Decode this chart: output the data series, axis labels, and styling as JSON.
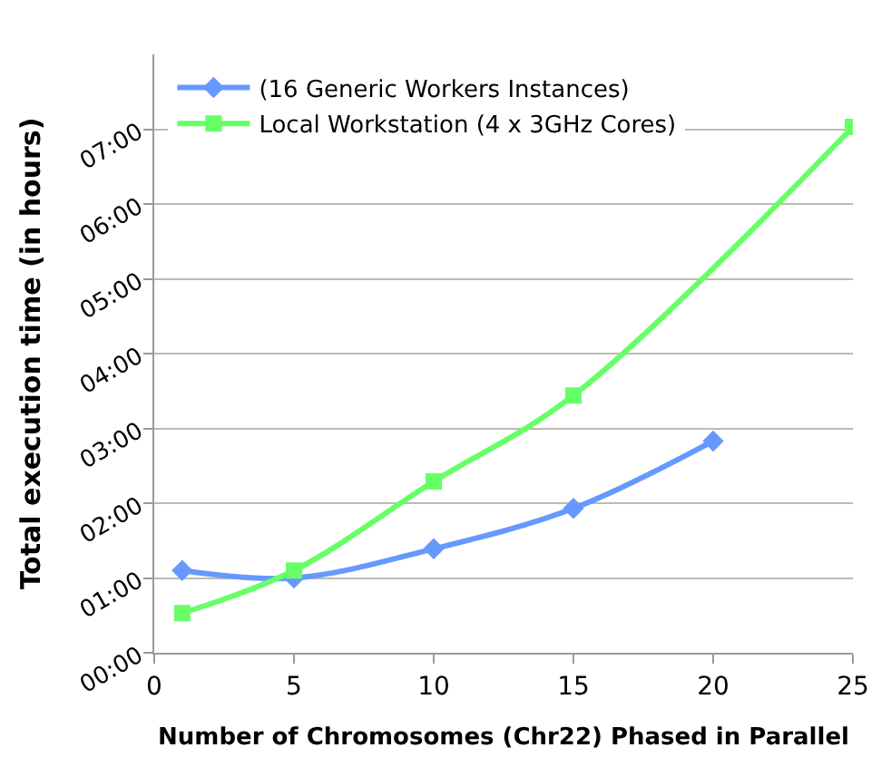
{
  "chart_data": {
    "type": "line",
    "xlabel": "Number of Chromosomes (Chr22) Phased in Parallel",
    "ylabel": "Total execution time (in hours)",
    "series": [
      {
        "name": "(16 Generic Workers Instances)",
        "color": "#6699ff",
        "marker": "diamond",
        "x": [
          1,
          5,
          10,
          15,
          20
        ],
        "values": [
          1.1,
          1.0,
          1.39,
          1.93,
          2.83
        ]
      },
      {
        "name": "Local Workstation (4 x 3GHz Cores)",
        "color": "#66ff66",
        "marker": "square",
        "x": [
          1,
          5,
          10,
          15,
          25
        ],
        "values": [
          0.53,
          1.1,
          2.29,
          3.44,
          7.03
        ]
      }
    ],
    "xlim": [
      0,
      25
    ],
    "xticks": [
      0,
      5,
      10,
      15,
      20,
      25
    ],
    "ylim": [
      0,
      8
    ],
    "yticks": [
      {
        "value": 0,
        "label": "00:00"
      },
      {
        "value": 1,
        "label": "01:00"
      },
      {
        "value": 2,
        "label": "02:00"
      },
      {
        "value": 3,
        "label": "03:00"
      },
      {
        "value": 4,
        "label": "04:00"
      },
      {
        "value": 5,
        "label": "05:00"
      },
      {
        "value": 6,
        "label": "06:00"
      },
      {
        "value": 7,
        "label": "07:00"
      }
    ],
    "grid": "y",
    "legend": "top left"
  }
}
